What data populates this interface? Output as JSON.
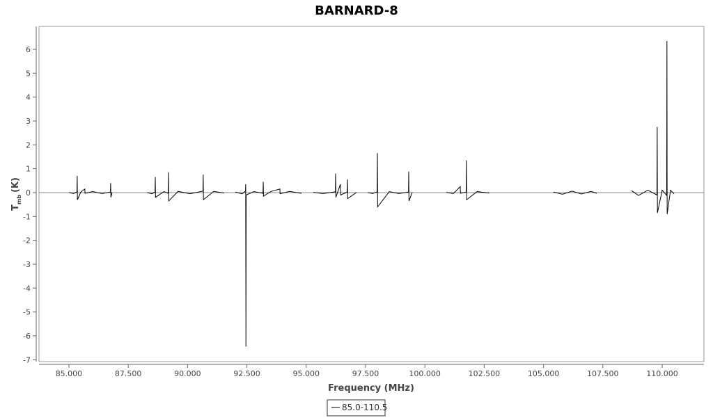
{
  "chart_data": {
    "type": "line",
    "title": "BARNARD-8",
    "x_label": "Frequency (MHz)",
    "y_label": {
      "main": "T",
      "sub": "mb",
      "unit": "(K)"
    },
    "xlim": [
      83.74,
      111.76
    ],
    "xticks": [
      {
        "value": 85,
        "label": "85.000"
      },
      {
        "value": 87.5,
        "label": "87.500"
      },
      {
        "value": 90,
        "label": "90.000"
      },
      {
        "value": 92.5,
        "label": "92.500"
      },
      {
        "value": 95,
        "label": "95.000"
      },
      {
        "value": 97.5,
        "label": "97.500"
      },
      {
        "value": 100,
        "label": "100.000"
      },
      {
        "value": 102.5,
        "label": "102.500"
      },
      {
        "value": 105,
        "label": "105.000"
      },
      {
        "value": 107.5,
        "label": "107.500"
      },
      {
        "value": 110,
        "label": "110.000"
      }
    ],
    "ylim": [
      -7.08,
      6.96
    ],
    "yticks": [
      -7,
      -6,
      -5,
      -4,
      -3,
      -2,
      -1,
      0,
      1,
      2,
      3,
      4,
      5,
      6
    ],
    "hline": 0,
    "x": [
      85.0,
      85.2,
      85.34,
      85.35,
      85.36,
      85.5,
      85.67,
      85.68,
      86.0,
      86.4,
      86.75,
      86.76,
      86.77,
      86.82,
      87.5,
      88.29,
      88.5,
      88.63,
      88.64,
      88.65,
      89.0,
      89.19,
      89.2,
      89.21,
      89.6,
      90.1,
      90.65,
      90.66,
      90.67,
      91.1,
      91.54,
      91.8,
      92.01,
      92.3,
      92.44,
      92.45,
      92.46,
      92.47,
      92.8,
      93.18,
      93.19,
      93.2,
      93.5,
      93.89,
      93.9,
      94.3,
      94.8,
      95.0,
      95.3,
      95.7,
      96.23,
      96.24,
      96.25,
      96.44,
      96.45,
      96.73,
      96.74,
      96.75,
      97.12,
      97.35,
      97.59,
      97.8,
      97.99,
      98.0,
      98.01,
      98.5,
      98.9,
      99.31,
      99.32,
      99.33,
      99.47,
      100.2,
      100.9,
      101.2,
      101.49,
      101.5,
      101.74,
      101.75,
      101.76,
      102.2,
      102.72,
      104.0,
      105.42,
      105.8,
      106.2,
      106.6,
      107.0,
      107.24,
      108.0,
      108.71,
      109.0,
      109.4,
      109.78,
      109.79,
      109.8,
      110.0,
      110.19,
      110.2,
      110.21,
      110.35,
      110.5
    ],
    "series": [
      {
        "name": "85.0-110.5",
        "color": "#000000",
        "values": [
          0.0,
          -0.04,
          0.03,
          0.7,
          -0.3,
          0.02,
          0.15,
          -0.03,
          0.04,
          -0.04,
          0.02,
          0.4,
          -0.2,
          0.01,
          null,
          0.0,
          -0.05,
          0.02,
          0.65,
          -0.2,
          0.04,
          -0.03,
          0.85,
          -0.35,
          0.05,
          -0.05,
          0.06,
          0.75,
          -0.3,
          0.05,
          -0.02,
          null,
          0.02,
          -0.05,
          0.06,
          0.35,
          -6.45,
          -0.1,
          0.04,
          -0.03,
          0.45,
          -0.15,
          0.04,
          0.15,
          -0.05,
          0.05,
          -0.03,
          null,
          0.01,
          -0.04,
          0.03,
          0.8,
          -0.2,
          0.35,
          -0.1,
          0.02,
          0.55,
          -0.25,
          0.01,
          null,
          0.0,
          -0.04,
          0.03,
          1.65,
          -0.6,
          0.04,
          -0.04,
          0.02,
          0.88,
          -0.35,
          0.01,
          null,
          0.01,
          -0.04,
          0.25,
          -0.03,
          0.02,
          1.35,
          -0.3,
          0.04,
          -0.02,
          null,
          0.02,
          -0.07,
          0.06,
          -0.06,
          0.05,
          -0.03,
          null,
          0.08,
          -0.12,
          0.1,
          -0.1,
          2.75,
          -0.85,
          0.1,
          -0.12,
          6.35,
          -0.9,
          0.1,
          -0.05
        ]
      }
    ]
  }
}
